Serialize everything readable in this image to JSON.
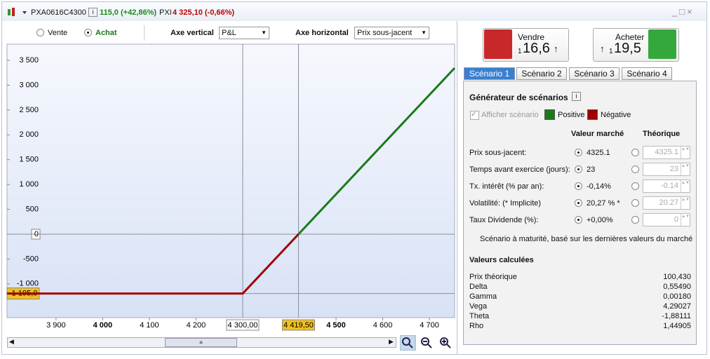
{
  "header": {
    "symbol": "PXA0616C4300",
    "price": "115,0 (+42,86%)",
    "underlying": "PXI",
    "underlying_price": "4 325,10 (-0,66%)"
  },
  "toolbar": {
    "sell_option": "Vente",
    "buy_option": "Achat",
    "vertical_axis_label": "Axe vertical",
    "vertical_axis": "P&L",
    "horizontal_axis_label": "Axe horizontal",
    "horizontal_axis": "Prix sous-jacent"
  },
  "chart_data": {
    "type": "line",
    "x": [
      3795,
      4300,
      4419.5,
      4754
    ],
    "series": [
      {
        "name": "Négative",
        "color": "#a00000",
        "values": [
          -1195,
          -1195,
          0,
          null
        ]
      },
      {
        "name": "Positive",
        "color": "#1a7a1a",
        "values": [
          null,
          null,
          0,
          3345
        ]
      }
    ],
    "xlim": [
      3795,
      4754
    ],
    "ylim": [
      -1680,
      3825
    ],
    "xticks": [
      {
        "value": 3900,
        "label": "3 900"
      },
      {
        "value": 4000,
        "label": "4 000"
      },
      {
        "value": 4100,
        "label": "4 100"
      },
      {
        "value": 4200,
        "label": "4 200"
      },
      {
        "value": 4500,
        "label": "4 500"
      },
      {
        "value": 4600,
        "label": "4 600"
      },
      {
        "value": 4700,
        "label": "4 700"
      }
    ],
    "yticks": [
      {
        "value": 3500,
        "label": "3 500"
      },
      {
        "value": 3000,
        "label": "3 000"
      },
      {
        "value": 2500,
        "label": "2 500"
      },
      {
        "value": 2000,
        "label": "2 000"
      },
      {
        "value": 1500,
        "label": "1 500"
      },
      {
        "value": 1000,
        "label": "1 000"
      },
      500,
      0,
      -500,
      {
        "value": -1000,
        "label": "-1 000"
      }
    ],
    "crosshair_x": [
      {
        "value": 4300,
        "label": "4 300,00"
      },
      {
        "value": 4419.5,
        "label": "4 419,50"
      }
    ],
    "crosshair_y": [
      {
        "value": -1195,
        "label": "-1 195,0"
      }
    ],
    "grid": false
  },
  "order": {
    "sell_label": "Vendre",
    "sell_qty": "1",
    "sell_price": "16,6",
    "buy_label": "Acheter",
    "buy_qty": "1",
    "buy_price": "19,5"
  },
  "tabs": [
    "Scénario 1",
    "Scénario 2",
    "Scénario 3",
    "Scénario 4"
  ],
  "scenario": {
    "title": "Générateur de scénarios",
    "show_label": "Afficher scénario",
    "market_header": "Valeur marché",
    "theoretical_header": "Théorique",
    "rows": [
      {
        "label": "Prix sous-jacent:",
        "market": "4325.1",
        "theoretical": "4325.1"
      },
      {
        "label": "Temps avant exercice (jours):",
        "market": "23",
        "theoretical": "23"
      },
      {
        "label": "Tx. intérêt (% par an):",
        "market": "-0,14%",
        "theoretical": "-0.14"
      },
      {
        "label": "Volatilité: (* Implicite)",
        "market": "20,27 % *",
        "theoretical": "20.27"
      },
      {
        "label": "Taux Dividende (%):",
        "market": "+0,00%",
        "theoretical": "0"
      }
    ],
    "note": "Scénario à maturité, basé sur les dernières valeurs du marché"
  },
  "calculated": {
    "title": "Valeurs calculées",
    "items": [
      {
        "name": "Prix théorique",
        "value": "100,430"
      },
      {
        "name": "Delta",
        "value": "0,55490"
      },
      {
        "name": "Gamma",
        "value": "0,00180"
      },
      {
        "name": "Vega",
        "value": "4,29027"
      },
      {
        "name": "Theta",
        "value": "-1,88111"
      },
      {
        "name": "Rho",
        "value": "1,44905"
      }
    ]
  }
}
